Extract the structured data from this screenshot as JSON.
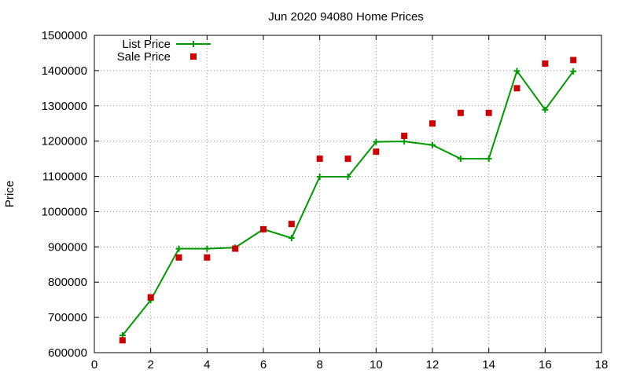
{
  "chart_data": {
    "type": "line",
    "title": "Jun 2020 94080 Home Prices",
    "xlabel": "",
    "ylabel": "Price",
    "xlim": [
      0,
      18
    ],
    "ylim": [
      600000,
      1500000
    ],
    "x_ticks": [
      0,
      2,
      4,
      6,
      8,
      10,
      12,
      14,
      16,
      18
    ],
    "y_ticks": [
      600000,
      700000,
      800000,
      900000,
      1000000,
      1100000,
      1200000,
      1300000,
      1400000,
      1500000
    ],
    "grid": true,
    "legend_position": "top-left",
    "x": [
      1,
      2,
      3,
      4,
      5,
      6,
      7,
      8,
      9,
      10,
      11,
      12,
      13,
      14,
      15,
      16,
      17
    ],
    "series": [
      {
        "name": "List Price",
        "style": "lines+points",
        "marker": "plus",
        "color": "#009900",
        "values": [
          649000,
          749000,
          895000,
          895000,
          898000,
          950000,
          925000,
          1099000,
          1099000,
          1198000,
          1199000,
          1189000,
          1150000,
          1150000,
          1399000,
          1289000,
          1398000
        ]
      },
      {
        "name": "Sale Price",
        "style": "points",
        "marker": "square",
        "color": "#cc0000",
        "values": [
          635000,
          757000,
          870000,
          870000,
          895000,
          950000,
          965000,
          1150000,
          1150000,
          1170000,
          1215000,
          1250000,
          1280000,
          1280000,
          1350000,
          1420000,
          1430000
        ]
      }
    ]
  }
}
